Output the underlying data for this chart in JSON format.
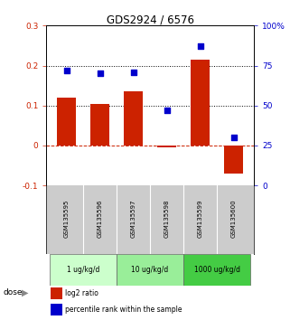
{
  "title": "GDS2924 / 6576",
  "samples": [
    "GSM135595",
    "GSM135596",
    "GSM135597",
    "GSM135598",
    "GSM135599",
    "GSM135600"
  ],
  "log2_ratios": [
    0.12,
    0.105,
    0.135,
    -0.005,
    0.215,
    -0.07
  ],
  "percentile_ranks": [
    72,
    70,
    71,
    47,
    87,
    30
  ],
  "doses": [
    {
      "label": "1 ug/kg/d",
      "start": 0,
      "end": 2,
      "color": "#ccffcc"
    },
    {
      "label": "10 ug/kg/d",
      "start": 2,
      "end": 4,
      "color": "#99ee99"
    },
    {
      "label": "1000 ug/kg/d",
      "start": 4,
      "end": 6,
      "color": "#44cc44"
    }
  ],
  "bar_color": "#cc2200",
  "scatter_color": "#0000cc",
  "ylim_left": [
    -0.1,
    0.3
  ],
  "ylim_right": [
    0,
    100
  ],
  "yticks_left": [
    -0.1,
    0.0,
    0.1,
    0.2,
    0.3
  ],
  "yticks_right": [
    0,
    25,
    50,
    75,
    100
  ],
  "ytick_labels_right": [
    "0",
    "25",
    "50",
    "75",
    "100%"
  ],
  "hline_y": [
    0.1,
    0.2
  ],
  "zero_line_y": 0.0,
  "legend_bar_label": "log2 ratio",
  "legend_scatter_label": "percentile rank within the sample",
  "dose_label": "dose",
  "background_color": "#ffffff",
  "sample_box_color": "#cccccc"
}
